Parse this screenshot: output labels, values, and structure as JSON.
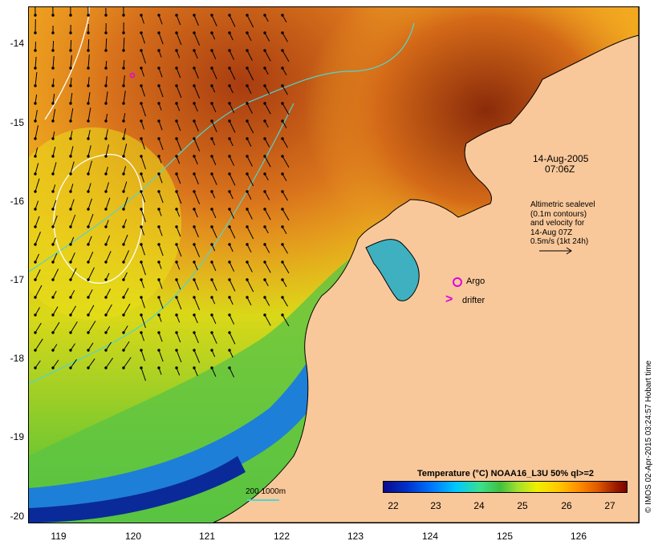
{
  "map": {
    "y_labels": [
      "-14",
      "-15",
      "-16",
      "-17",
      "-18",
      "-19",
      "-20"
    ],
    "x_labels": [
      "119",
      "120",
      "121",
      "122",
      "123",
      "124",
      "125",
      "126"
    ],
    "colors": {
      "land": "#f9c89a",
      "coast": "#000000",
      "depth_contour": "#4fd6d0",
      "sealevel_contour": "#ffffff",
      "marker": "#e000e0"
    }
  },
  "annotations": {
    "date": "14-Aug-2005",
    "time": "07:06Z",
    "alt_lines": [
      "Altimetric sealevel",
      "(0.1m contours)",
      "and velocity for",
      "14-Aug 07Z",
      "0.5m/s (1kt 24h)"
    ],
    "argo": "Argo",
    "drifter": "drifter",
    "depth_legend": "200  1000m"
  },
  "colorbar": {
    "title": "Temperature (°C) NOAA16_L3U 50% ql>=2",
    "labels": [
      "22",
      "23",
      "24",
      "25",
      "26",
      "27"
    ]
  },
  "credit": "© IMOS 02-Apr-2015 03:24:57 Hobart time"
}
